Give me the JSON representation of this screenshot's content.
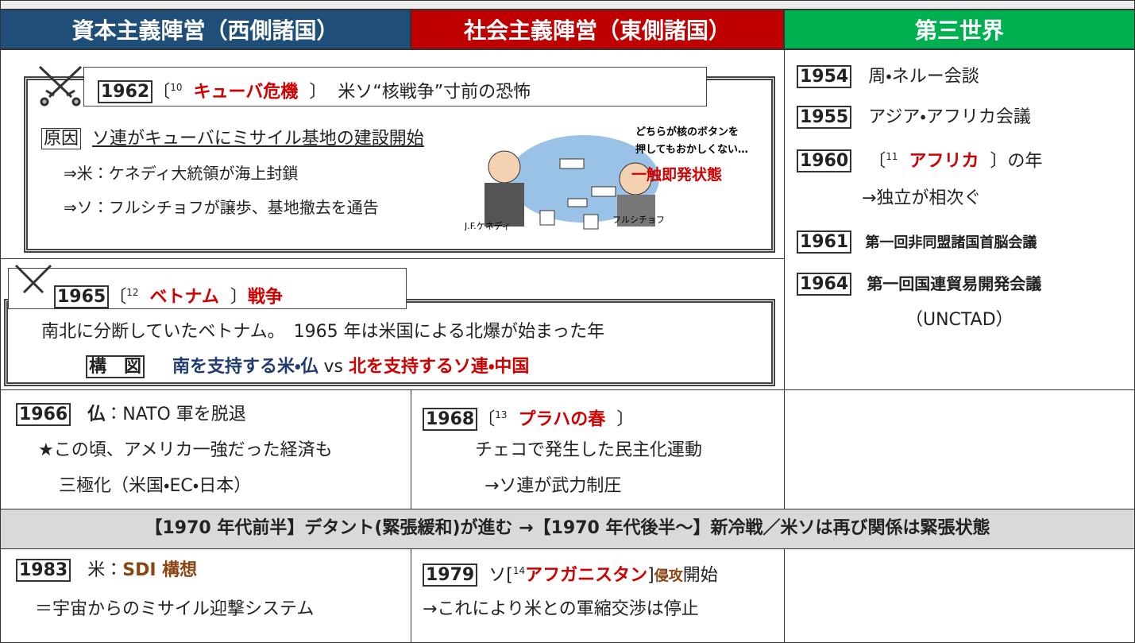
{
  "header": {
    "columns": [
      "資本主義陣営（西側諸国）",
      "社会主義陣営（東側諸国）",
      "第三世界"
    ]
  },
  "cuba": {
    "year": "1962",
    "open": "〔",
    "num": "10",
    "answer": "キューバ危機",
    "close": "〕",
    "desc": "米ソ“核戦争”寸前の恐怖",
    "cause_label": "原因",
    "cause": "ソ連がキューバにミサイル基地の建設開始",
    "steps": [
      "⇒米：ケネディ大統領が海上封鎖",
      "⇒ソ：フルシチョフが譲歩、基地撤去を通告"
    ],
    "illustration": {
      "caption": [
        "どちらが核のボタンを",
        "押してもおかしくない…"
      ],
      "state": "一触即発状態",
      "labels": [
        "J.F.ケネディ",
        "フルシチョフ"
      ]
    }
  },
  "third_world": {
    "items": [
      {
        "year": "1954",
        "text": "周・ネルー会談"
      },
      {
        "year": "1955",
        "text": "アジア・アフリカ会議"
      },
      {
        "year": "1960",
        "open": "〔",
        "num": "11",
        "answer": "アフリカ",
        "close": "〕の年",
        "note": "→独立が相次ぐ"
      },
      {
        "year": "1961",
        "text": "第一回非同盟諸国首脳会議"
      },
      {
        "year": "1964",
        "text": "第一回国連貿易開発会議",
        "note": "（UNCTAD）"
      }
    ]
  },
  "vietnam": {
    "year": "1965",
    "open": "〔",
    "num": "12",
    "answer": "ベトナム",
    "close": "〕",
    "suffix": "戦争",
    "desc": "南北に分断していたベトナム。　1965 年は米国による北爆が始まった年",
    "structure_label": "構　図",
    "south": "南を支持する米・仏",
    "vs": "vs",
    "north": "北を支持するソ連・中国"
  },
  "west_1966": {
    "year": "1966",
    "subject": "仏",
    "text": "：NATO 軍を脱退",
    "notes": [
      "★この頃、アメリカ一強だった経済も",
      "三極化（米国・EC・日本）"
    ]
  },
  "east_1968": {
    "year": "1968",
    "open": "〔",
    "num": "13",
    "answer": "プラハの春",
    "close": "〕",
    "notes": [
      "チェコで発生した民主化運動",
      "→ソ連が武力制圧"
    ]
  },
  "band": "【1970 年代前半】デタント(緊張緩和)が進む →【1970 年代後半～】新冷戦／米ソは再び関係は緊張状態",
  "west_1983": {
    "year": "1983",
    "prefix": "米：",
    "answer": "SDI 構想",
    "note": "＝宇宙からのミサイル迎撃システム"
  },
  "east_1979": {
    "year": "1979",
    "prefix": "ソ[",
    "num": "14",
    "answer": "アフガニスタン",
    "close": "]",
    "verb": "侵攻",
    "suffix": "開始",
    "note": "→これにより米との軍縮交渉は停止"
  }
}
